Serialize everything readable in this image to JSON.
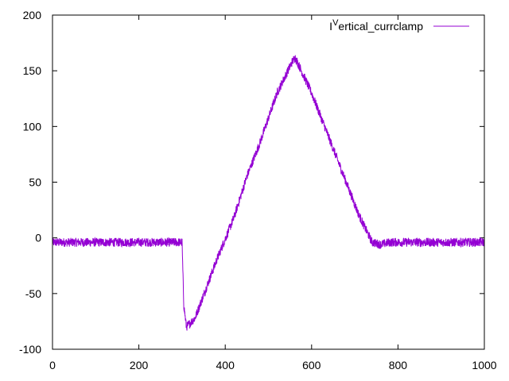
{
  "chart_data": {
    "type": "line",
    "title": "",
    "xlabel": "",
    "ylabel": "",
    "xlim": [
      0,
      1000
    ],
    "ylim": [
      -100,
      200
    ],
    "xticks": [
      0,
      200,
      400,
      600,
      800,
      1000
    ],
    "yticks": [
      -100,
      -50,
      0,
      50,
      100,
      150,
      200
    ],
    "grid": false,
    "legend": "top-right",
    "series": [
      {
        "name": "I^Vertical_currclamp",
        "legend_prefix": "I",
        "legend_sup": "V",
        "legend_suffix": "ertical_currclamp",
        "color": "#9400d3",
        "noise_amplitude": 4,
        "x": [
          0,
          300,
          304,
          310,
          330,
          380,
          420,
          450,
          480,
          520,
          555,
          562,
          600,
          660,
          710,
          740,
          760,
          780,
          1000
        ],
        "y": [
          -4,
          -4,
          -60,
          -80,
          -72,
          -20,
          18,
          55,
          85,
          130,
          158,
          162,
          130,
          70,
          20,
          -4,
          -6,
          -4,
          -4
        ]
      }
    ]
  }
}
